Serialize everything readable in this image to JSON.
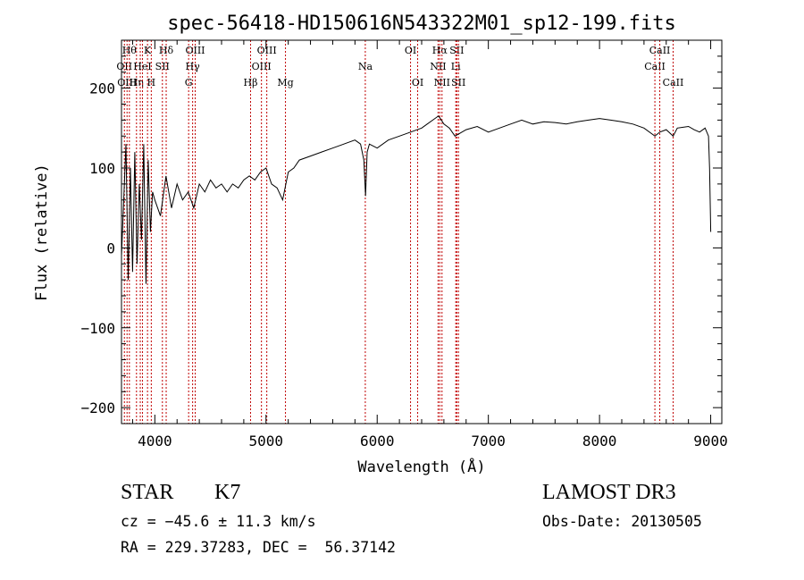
{
  "chart_data": {
    "type": "line",
    "title": "spec-56418-HD150616N543322M01_sp12-199.fits",
    "xlabel": "Wavelength (Å)",
    "ylabel": "Flux (relative)",
    "xlim": [
      3700,
      9100
    ],
    "ylim": [
      -220,
      260
    ],
    "x_ticks": [
      4000,
      5000,
      6000,
      7000,
      8000,
      9000
    ],
    "y_ticks": [
      -200,
      -100,
      0,
      100,
      200
    ],
    "grid": false,
    "series": [
      {
        "x": [
          3700,
          3720,
          3740,
          3760,
          3780,
          3800,
          3820,
          3840,
          3860,
          3880,
          3900,
          3920,
          3940,
          3960,
          3980,
          4000,
          4050,
          4100,
          4150,
          4200,
          4250,
          4300,
          4350,
          4400,
          4450,
          4500,
          4550,
          4600,
          4650,
          4700,
          4750,
          4800,
          4850,
          4900,
          4950,
          5000,
          5050,
          5100,
          5150,
          5200,
          5250,
          5300,
          5400,
          5500,
          5600,
          5700,
          5800,
          5850,
          5880,
          5895,
          5910,
          5930,
          6000,
          6100,
          6200,
          6300,
          6400,
          6450,
          6500,
          6550,
          6563,
          6600,
          6650,
          6700,
          6800,
          6900,
          7000,
          7100,
          7200,
          7300,
          7400,
          7500,
          7600,
          7700,
          7800,
          7900,
          8000,
          8100,
          8200,
          8300,
          8400,
          8498,
          8542,
          8600,
          8662,
          8700,
          8800,
          8850,
          8900,
          8950,
          8980,
          8990,
          9000
        ],
        "values": [
          -10,
          60,
          130,
          -40,
          100,
          -30,
          120,
          -20,
          80,
          10,
          130,
          -45,
          110,
          20,
          70,
          60,
          40,
          90,
          50,
          80,
          60,
          70,
          50,
          80,
          70,
          85,
          75,
          80,
          70,
          80,
          75,
          85,
          90,
          85,
          95,
          100,
          80,
          75,
          60,
          95,
          100,
          110,
          115,
          120,
          125,
          130,
          135,
          130,
          110,
          65,
          120,
          130,
          125,
          135,
          140,
          145,
          150,
          155,
          160,
          165,
          163,
          155,
          150,
          140,
          148,
          152,
          145,
          150,
          155,
          160,
          155,
          158,
          157,
          155,
          158,
          160,
          162,
          160,
          158,
          155,
          150,
          140,
          145,
          148,
          140,
          150,
          152,
          148,
          145,
          150,
          140,
          100,
          20
        ]
      }
    ],
    "lines": [
      {
        "wl": 3726,
        "name": "OII",
        "row": 1
      },
      {
        "wl": 3750,
        "name": "OIII",
        "row": 2
      },
      {
        "wl": 3771,
        "name": "Hθ",
        "row": 0
      },
      {
        "wl": 3835,
        "name": "Hη",
        "row": 2
      },
      {
        "wl": 3869,
        "name": "",
        "row": 0
      },
      {
        "wl": 3889,
        "name": "HeI",
        "row": 1
      },
      {
        "wl": 3934,
        "name": "K",
        "row": 0
      },
      {
        "wl": 3968,
        "name": "H",
        "row": 2
      },
      {
        "wl": 4068,
        "name": "SII",
        "row": 1
      },
      {
        "wl": 4102,
        "name": "Hδ",
        "row": 0
      },
      {
        "wl": 4304,
        "name": "G",
        "row": 2
      },
      {
        "wl": 4340,
        "name": "Hγ",
        "row": 1
      },
      {
        "wl": 4363,
        "name": "OIII",
        "row": 0
      },
      {
        "wl": 4861,
        "name": "Hβ",
        "row": 2
      },
      {
        "wl": 4959,
        "name": "OIII",
        "row": 1
      },
      {
        "wl": 5007,
        "name": "OIII",
        "row": 0
      },
      {
        "wl": 5175,
        "name": "Mg",
        "row": 2
      },
      {
        "wl": 5893,
        "name": "Na",
        "row": 1
      },
      {
        "wl": 6300,
        "name": "OI",
        "row": 0
      },
      {
        "wl": 6364,
        "name": "OI",
        "row": 2
      },
      {
        "wl": 6548,
        "name": "NII",
        "row": 1
      },
      {
        "wl": 6563,
        "name": "Hα",
        "row": 0
      },
      {
        "wl": 6583,
        "name": "NII",
        "row": 2
      },
      {
        "wl": 6707,
        "name": "Li",
        "row": 1
      },
      {
        "wl": 6716,
        "name": "SII",
        "row": 0
      },
      {
        "wl": 6731,
        "name": "SII",
        "row": 2
      },
      {
        "wl": 8498,
        "name": "CaII",
        "row": 1
      },
      {
        "wl": 8542,
        "name": "CaII",
        "row": 0
      },
      {
        "wl": 8662,
        "name": "CaII",
        "row": 2
      }
    ]
  },
  "info": {
    "class_type": "STAR",
    "subclass": "K7",
    "survey": "LAMOST DR3",
    "cz": "cz = −45.6 ± 11.3 km/s",
    "obs_date": "Obs-Date: 20130505",
    "radec": "RA = 229.37283, DEC =  56.37142"
  }
}
